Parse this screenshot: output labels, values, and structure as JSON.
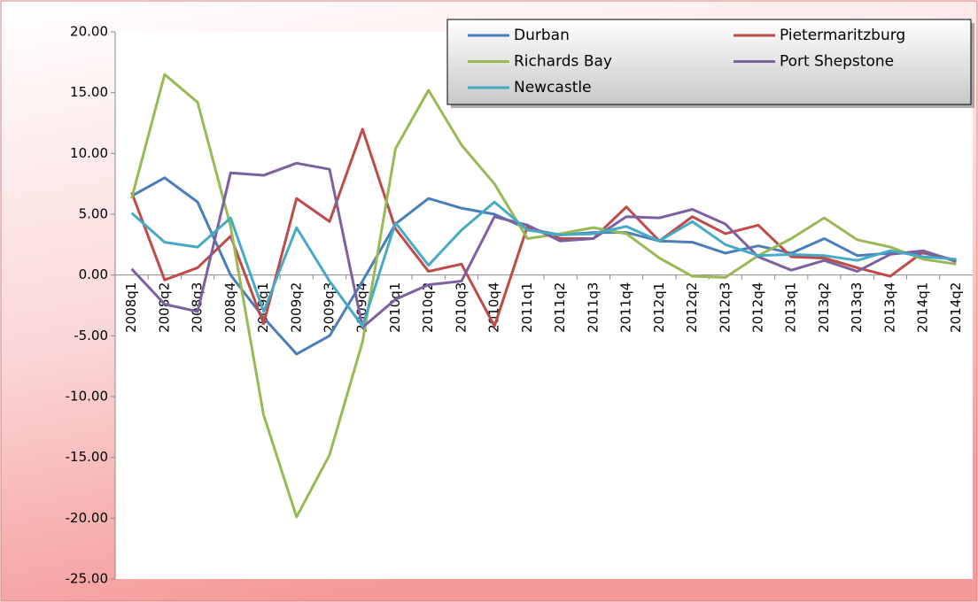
{
  "chart_data": {
    "type": "line",
    "categories": [
      "2008q1",
      "2008q2",
      "2008q3",
      "2008q4",
      "2009q1",
      "2009q2",
      "2009q3",
      "2009q4",
      "2010q1",
      "2010q2",
      "2010q3",
      "2010q4",
      "2011q1",
      "2011q2",
      "2011q3",
      "2011q4",
      "2012q1",
      "2012q2",
      "2012q3",
      "2012q4",
      "2013q1",
      "2013q2",
      "2013q3",
      "2013q4",
      "2014q1",
      "2014q2"
    ],
    "series": [
      {
        "name": "Durban",
        "color": "#4a7ebb",
        "values": [
          6.5,
          8.0,
          6.0,
          0.0,
          -3.5,
          -6.5,
          -5.0,
          -0.5,
          4.2,
          6.3,
          5.5,
          5.0,
          3.8,
          3.3,
          3.5,
          3.5,
          2.8,
          2.7,
          1.8,
          2.4,
          1.8,
          3.0,
          1.6,
          1.8,
          1.8,
          1.2
        ]
      },
      {
        "name": "Pietermaritzburg",
        "color": "#be4b48",
        "values": [
          6.8,
          -0.4,
          0.6,
          3.2,
          -4.0,
          6.3,
          4.4,
          12.0,
          3.8,
          0.3,
          0.9,
          -4.2,
          4.0,
          3.0,
          3.0,
          5.6,
          2.8,
          4.8,
          3.4,
          4.1,
          1.5,
          1.4,
          0.6,
          -0.1,
          1.9,
          1.2
        ]
      },
      {
        "name": "Richards Bay",
        "color": "#98b954",
        "values": [
          6.3,
          16.5,
          14.2,
          4.0,
          -11.5,
          -19.9,
          -14.8,
          -5.5,
          10.4,
          15.2,
          10.7,
          7.5,
          3.0,
          3.4,
          3.9,
          3.4,
          1.4,
          -0.1,
          -0.2,
          1.6,
          3.0,
          4.7,
          2.9,
          2.3,
          1.3,
          0.9
        ]
      },
      {
        "name": "Port Shepstone",
        "color": "#7d60a0",
        "values": [
          0.5,
          -2.4,
          -3.0,
          8.4,
          8.2,
          9.2,
          8.7,
          -4.3,
          -2.0,
          -0.8,
          -0.5,
          4.8,
          4.1,
          2.8,
          3.0,
          4.8,
          4.7,
          5.4,
          4.2,
          1.5,
          0.4,
          1.2,
          0.3,
          1.7,
          2.0,
          1.1
        ]
      },
      {
        "name": "Newcastle",
        "color": "#46aac5",
        "values": [
          5.1,
          2.7,
          2.3,
          4.7,
          -3.0,
          3.9,
          -0.5,
          -4.2,
          4.3,
          0.8,
          3.7,
          6.0,
          3.7,
          3.3,
          3.4,
          4.0,
          2.8,
          4.4,
          2.5,
          1.6,
          1.7,
          1.6,
          1.2,
          2.0,
          1.5,
          1.3
        ]
      }
    ],
    "ylim": [
      -25,
      20
    ],
    "yticks": [
      {
        "value": -25,
        "label": "-25.00"
      },
      {
        "value": -20,
        "label": "-20.00"
      },
      {
        "value": -15,
        "label": "-15.00"
      },
      {
        "value": -10,
        "label": "-10.00"
      },
      {
        "value": -5,
        "label": "-5.00"
      },
      {
        "value": 0,
        "label": "0.00"
      },
      {
        "value": 5,
        "label": "5.00"
      },
      {
        "value": 10,
        "label": "10.00"
      },
      {
        "value": 15,
        "label": "15.00"
      },
      {
        "value": 20,
        "label": "20.00"
      }
    ],
    "grid": false,
    "legend": "top-right"
  }
}
